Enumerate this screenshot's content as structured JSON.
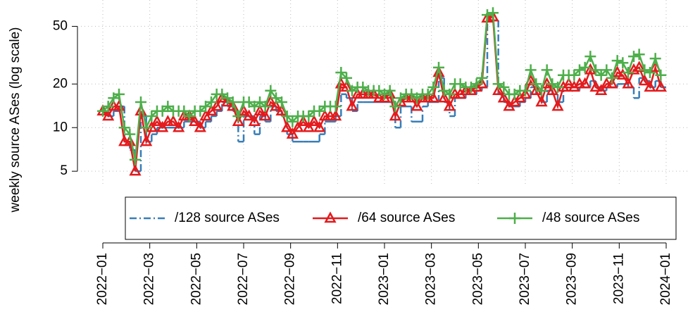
{
  "chart_data": {
    "type": "line",
    "log_y": true,
    "grid": true,
    "legend": "bottom",
    "ylabel": "weekly source ASes (log scale)",
    "xlim": [
      -1.08,
      24.93
    ],
    "ylim": [
      1.6,
      76
    ],
    "yticks": [
      5,
      10,
      20,
      50
    ],
    "xticks": [
      {
        "value": 0,
        "label": "2022−01"
      },
      {
        "value": 2,
        "label": "2022−03"
      },
      {
        "value": 4,
        "label": "2022−05"
      },
      {
        "value": 6,
        "label": "2022−07"
      },
      {
        "value": 8,
        "label": "2022−09"
      },
      {
        "value": 10,
        "label": "2022−11"
      },
      {
        "value": 12,
        "label": "2023−01"
      },
      {
        "value": 14,
        "label": "2023−03"
      },
      {
        "value": 16,
        "label": "2023−05"
      },
      {
        "value": 18,
        "label": "2023−07"
      },
      {
        "value": 20,
        "label": "2023−09"
      },
      {
        "value": 22,
        "label": "2023−11"
      },
      {
        "value": 24,
        "label": "2024−01"
      }
    ],
    "x": [
      0,
      0.23,
      0.46,
      0.69,
      0.92,
      1.15,
      1.38,
      1.62,
      1.85,
      2.08,
      2.31,
      2.54,
      2.77,
      3,
      3.23,
      3.46,
      3.69,
      3.92,
      4.15,
      4.38,
      4.62,
      4.85,
      5.08,
      5.31,
      5.54,
      5.77,
      6,
      6.23,
      6.46,
      6.69,
      6.92,
      7.15,
      7.38,
      7.62,
      7.85,
      8.08,
      8.31,
      8.54,
      8.77,
      9,
      9.23,
      9.46,
      9.69,
      9.92,
      10.15,
      10.38,
      10.62,
      10.85,
      11.08,
      11.31,
      11.54,
      11.77,
      12,
      12.23,
      12.46,
      12.69,
      12.92,
      13.15,
      13.38,
      13.62,
      13.85,
      14.08,
      14.31,
      14.54,
      14.77,
      15,
      15.23,
      15.46,
      15.69,
      15.92,
      16.15,
      16.38,
      16.62,
      16.85,
      17.08,
      17.31,
      17.54,
      17.77,
      18,
      18.23,
      18.46,
      18.69,
      18.92,
      19.15,
      19.38,
      19.62,
      19.85,
      20.08,
      20.31,
      20.54,
      20.77,
      21,
      21.23,
      21.46,
      21.69,
      21.92,
      22.15,
      22.38,
      22.62,
      22.85,
      23.08,
      23.31,
      23.54,
      23.77
    ],
    "series": [
      {
        "name": "/128 source ASes",
        "color": "#377eb8",
        "style": "step-dashdot",
        "values": [
          13,
          12,
          13,
          14,
          8,
          7,
          5,
          12,
          8,
          9,
          10,
          10,
          10,
          10,
          10,
          11,
          11,
          11,
          10,
          11,
          12,
          13,
          15,
          14,
          13,
          8,
          12,
          12,
          9,
          12,
          11,
          14,
          13,
          12,
          9,
          8,
          8,
          8,
          8,
          8,
          9,
          11,
          11,
          12,
          17,
          16,
          13,
          15,
          15,
          15,
          15,
          15,
          15,
          15,
          10,
          14,
          14,
          11,
          11,
          14,
          15,
          15,
          22,
          15,
          12,
          16,
          16,
          17,
          17,
          18,
          19,
          55,
          55,
          17,
          15,
          14,
          14,
          15,
          16,
          19,
          17,
          15,
          18,
          17,
          15,
          18,
          18,
          18,
          19,
          19,
          21,
          19,
          18,
          19,
          19,
          20,
          20,
          19,
          16,
          22,
          21,
          19,
          21,
          19
        ]
      },
      {
        "name": "/64 source ASes",
        "color": "#e41a1c",
        "style": "triangle",
        "values": [
          13,
          12,
          14,
          14,
          8,
          8,
          5,
          13,
          8,
          10,
          11,
          10,
          11,
          11,
          10,
          12,
          12,
          11,
          10,
          12,
          13,
          14,
          16,
          15,
          14,
          11,
          13,
          12,
          11,
          13,
          12,
          15,
          14,
          13,
          10,
          9,
          10,
          11,
          10,
          11,
          10,
          12,
          12,
          12,
          20,
          19,
          14,
          17,
          17,
          17,
          17,
          16,
          16,
          17,
          12,
          15,
          16,
          16,
          14,
          16,
          16,
          16,
          24,
          16,
          14,
          17,
          17,
          18,
          18,
          19,
          20,
          57,
          58,
          18,
          16,
          14,
          15,
          16,
          17,
          21,
          18,
          15,
          20,
          18,
          14,
          19,
          20,
          19,
          20,
          20,
          25,
          19,
          18,
          20,
          20,
          24,
          23,
          20,
          25,
          26,
          21,
          19,
          26,
          19
        ]
      },
      {
        "name": "/48 source ASes",
        "color": "#4daf4a",
        "style": "plus",
        "values": [
          13,
          14,
          16,
          17,
          10,
          9,
          6,
          15,
          10,
          12,
          13,
          13,
          14,
          13,
          13,
          13,
          12,
          13,
          13,
          14,
          15,
          17,
          17,
          16,
          15,
          12,
          15,
          15,
          14,
          15,
          14,
          18,
          16,
          15,
          12,
          11,
          12,
          12,
          12,
          13,
          13,
          14,
          14,
          14,
          24,
          22,
          18,
          19,
          19,
          18,
          18,
          18,
          17,
          18,
          14,
          16,
          17,
          17,
          16,
          17,
          17,
          19,
          26,
          18,
          17,
          20,
          20,
          19,
          19,
          20,
          22,
          60,
          62,
          20,
          19,
          17,
          17,
          18,
          18,
          25,
          20,
          18,
          25,
          20,
          19,
          23,
          23,
          23,
          25,
          26,
          31,
          25,
          23,
          25,
          22,
          29,
          28,
          24,
          31,
          32,
          25,
          24,
          30,
          23
        ]
      }
    ]
  }
}
